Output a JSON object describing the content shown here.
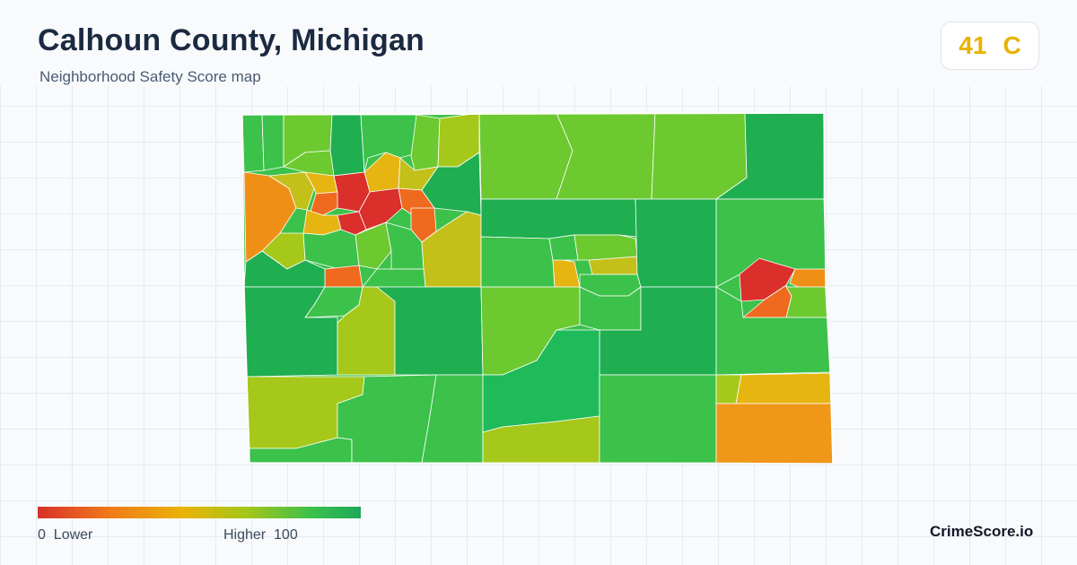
{
  "header": {
    "title": "Calhoun County, Michigan",
    "subtitle": "Neighborhood Safety Score map"
  },
  "score_badge": {
    "score": "41",
    "grade": "C",
    "color": "#e8b300"
  },
  "legend": {
    "min_value": "0",
    "min_label": "Lower",
    "max_label": "Higher",
    "max_value": "100",
    "colors": [
      "#d7302a",
      "#f07a1a",
      "#eab308",
      "#a3c61a",
      "#3bc04c",
      "#1fa85a"
    ]
  },
  "brand": "CrimeScore.io",
  "map_colors": {
    "dark_green": "#1fae50",
    "green": "#3cc14a",
    "light_green": "#6cc930",
    "yellow_green": "#a5c81a",
    "olive": "#c3c01a",
    "yellow": "#e6b511",
    "orange": "#f08f16",
    "red_orange": "#ef6a1e",
    "red": "#da2f2b"
  }
}
